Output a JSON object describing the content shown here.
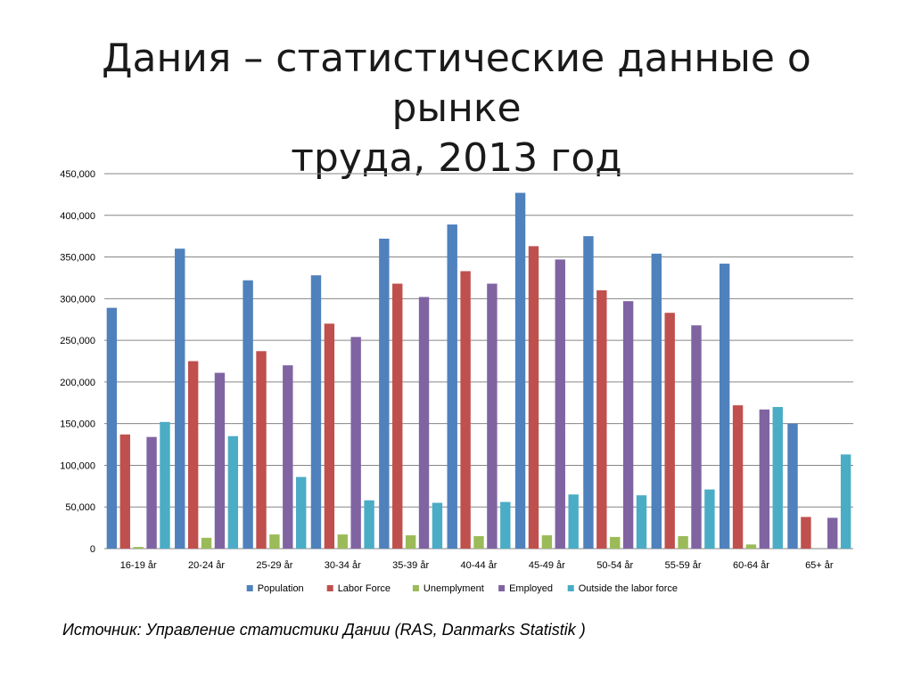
{
  "title": {
    "line1": "Дания – статистические данные о рынке",
    "line2": "труда, 2013 год"
  },
  "source": "Источник: Управление статистики Дании (RAS, Danmarks Statistik )",
  "chart_data": {
    "type": "bar",
    "categories": [
      "16-19 år",
      "20-24 år",
      "25-29 år",
      "30-34 år",
      "35-39 år",
      "40-44 år",
      "45-49 år",
      "50-54 år",
      "55-59 år",
      "60-64 år",
      "65+ år"
    ],
    "series": [
      {
        "name": "Population",
        "color": "#4F81BD",
        "values": [
          289000,
          360000,
          322000,
          328000,
          372000,
          389000,
          427000,
          375000,
          354000,
          342000,
          150000
        ]
      },
      {
        "name": "Labor Force",
        "color": "#C0504D",
        "values": [
          137000,
          225000,
          237000,
          270000,
          318000,
          333000,
          363000,
          310000,
          283000,
          172000,
          38000
        ]
      },
      {
        "name": "Unemplyment",
        "color": "#9BBB59",
        "values": [
          2000,
          13000,
          17000,
          17000,
          16000,
          15000,
          16000,
          14000,
          15000,
          5000,
          0
        ]
      },
      {
        "name": "Employed",
        "color": "#8064A2",
        "values": [
          134000,
          211000,
          220000,
          254000,
          302000,
          318000,
          347000,
          297000,
          268000,
          167000,
          37000
        ]
      },
      {
        "name": "Outside the labor force",
        "color": "#4BACC6",
        "values": [
          152000,
          135000,
          86000,
          58000,
          55000,
          56000,
          65000,
          64000,
          71000,
          170000,
          113000
        ]
      }
    ],
    "yticks": [
      "0",
      "50,000",
      "100,000",
      "150,000",
      "200,000",
      "250,000",
      "300,000",
      "350,000",
      "400,000",
      "450,000"
    ],
    "ylim": [
      0,
      450000
    ],
    "grid": true,
    "legend_position": "bottom"
  }
}
